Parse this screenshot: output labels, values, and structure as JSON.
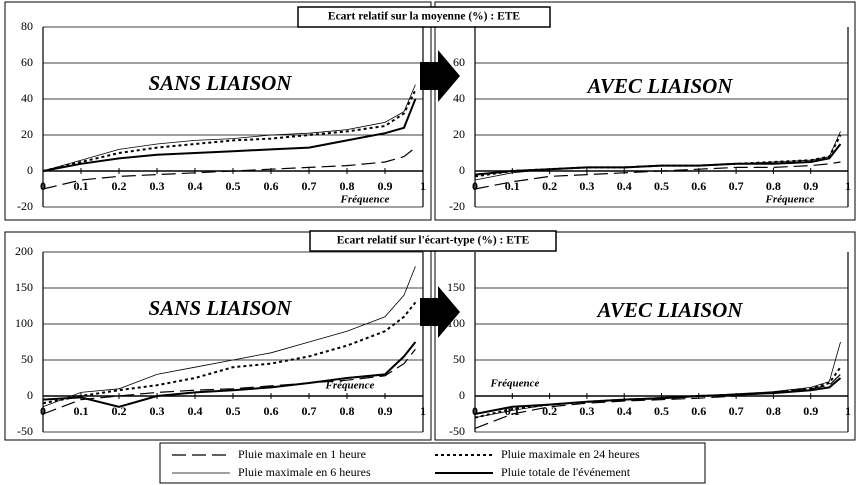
{
  "chart_data": [
    {
      "type": "line",
      "title": "Ecart relatif sur la moyenne (%) : ETE",
      "annotation": "SANS LIAISON",
      "xlabel": "Fréquence",
      "x": [
        0,
        0.1,
        0.2,
        0.3,
        0.4,
        0.5,
        0.6,
        0.7,
        0.8,
        0.9,
        0.95,
        0.98
      ],
      "xlim": [
        0,
        1
      ],
      "xticks": [
        0,
        0.1,
        0.2,
        0.3,
        0.4,
        0.5,
        0.6,
        0.7,
        0.8,
        0.9,
        1
      ],
      "ylim": [
        -20,
        80
      ],
      "yticks": [
        -20,
        0,
        20,
        40,
        60,
        80
      ],
      "grid": true,
      "series": [
        {
          "name": "Pluie maximale en 1 heure",
          "color": "#000",
          "style": "long-dash",
          "values": [
            -10,
            -5,
            -3,
            -2,
            -1,
            0,
            1,
            2,
            3,
            5,
            8,
            13
          ]
        },
        {
          "name": "Pluie maximale en 24 heures",
          "color": "#000",
          "style": "dotted",
          "values": [
            0,
            5,
            10,
            13,
            15,
            17,
            18,
            20,
            22,
            25,
            32,
            45
          ]
        },
        {
          "name": "Pluie maximale en 6 heures",
          "color": "#000",
          "style": "thin",
          "values": [
            0,
            6,
            12,
            15,
            17,
            18,
            20,
            21,
            23,
            27,
            33,
            48
          ]
        },
        {
          "name": "Pluie totale de l'événement",
          "color": "#000",
          "style": "thick",
          "values": [
            0,
            4,
            7,
            9,
            10,
            11,
            12,
            13,
            17,
            21,
            24,
            40
          ]
        }
      ]
    },
    {
      "type": "line",
      "annotation": "AVEC LIAISON",
      "xlabel": "Fréquence",
      "x": [
        0,
        0.1,
        0.2,
        0.3,
        0.4,
        0.5,
        0.6,
        0.7,
        0.8,
        0.9,
        0.95,
        0.98
      ],
      "xlim": [
        0,
        1
      ],
      "xticks": [
        0,
        0.1,
        0.2,
        0.3,
        0.4,
        0.5,
        0.6,
        0.7,
        0.8,
        0.9,
        1
      ],
      "ylim": [
        -20,
        80
      ],
      "yticks": [
        -20,
        0,
        20,
        40,
        60
      ],
      "grid": true,
      "series": [
        {
          "color": "#000",
          "style": "long-dash",
          "values": [
            -10,
            -6,
            -3,
            -2,
            -1,
            0,
            1,
            2,
            2,
            3,
            4,
            5
          ]
        },
        {
          "color": "#000",
          "style": "dotted",
          "values": [
            -3,
            0,
            1,
            2,
            2,
            3,
            3,
            4,
            5,
            6,
            8,
            20
          ]
        },
        {
          "color": "#000",
          "style": "thin",
          "values": [
            -5,
            -1,
            1,
            2,
            2,
            3,
            3,
            4,
            5,
            6,
            8,
            22
          ]
        },
        {
          "color": "#000",
          "style": "thick",
          "values": [
            -2,
            0,
            1,
            2,
            2,
            3,
            3,
            4,
            4,
            5,
            7,
            15
          ]
        }
      ]
    },
    {
      "type": "line",
      "title": "Ecart relatif sur l'écart-type (%) : ETE",
      "annotation": "SANS LIAISON",
      "xlabel": "Fréquence",
      "x": [
        0,
        0.1,
        0.2,
        0.3,
        0.4,
        0.5,
        0.6,
        0.7,
        0.8,
        0.9,
        0.95,
        0.98
      ],
      "xlim": [
        0,
        1
      ],
      "xticks": [
        0,
        0.1,
        0.2,
        0.3,
        0.4,
        0.5,
        0.6,
        0.7,
        0.8,
        0.9,
        1
      ],
      "ylim": [
        -50,
        200
      ],
      "yticks": [
        -50,
        0,
        50,
        100,
        150,
        200
      ],
      "grid": true,
      "series": [
        {
          "color": "#000",
          "style": "long-dash",
          "values": [
            -25,
            -5,
            0,
            5,
            8,
            10,
            14,
            18,
            22,
            28,
            45,
            65
          ]
        },
        {
          "color": "#000",
          "style": "dotted",
          "values": [
            -10,
            0,
            8,
            15,
            25,
            40,
            45,
            55,
            70,
            90,
            110,
            130
          ]
        },
        {
          "color": "#000",
          "style": "thin",
          "values": [
            -15,
            5,
            10,
            30,
            40,
            50,
            60,
            75,
            90,
            110,
            140,
            180
          ]
        },
        {
          "color": "#000",
          "style": "thick",
          "values": [
            -5,
            -2,
            -15,
            0,
            5,
            8,
            12,
            18,
            25,
            30,
            55,
            75
          ]
        }
      ]
    },
    {
      "type": "line",
      "annotation": "AVEC LIAISON",
      "xlabel": "Fréquence",
      "x": [
        0,
        0.1,
        0.2,
        0.3,
        0.4,
        0.5,
        0.6,
        0.7,
        0.8,
        0.9,
        0.95,
        0.98
      ],
      "xlim": [
        0,
        1
      ],
      "xticks": [
        0,
        0.1,
        0.2,
        0.3,
        0.4,
        0.5,
        0.6,
        0.7,
        0.8,
        0.9,
        1
      ],
      "ylim": [
        -50,
        200
      ],
      "yticks": [
        -50,
        0,
        50,
        100,
        150
      ],
      "grid": true,
      "series": [
        {
          "color": "#000",
          "style": "long-dash",
          "values": [
            -45,
            -25,
            -15,
            -10,
            -7,
            -5,
            -3,
            0,
            5,
            10,
            15,
            30
          ]
        },
        {
          "color": "#000",
          "style": "dotted",
          "values": [
            -30,
            -18,
            -12,
            -8,
            -5,
            -3,
            0,
            2,
            5,
            10,
            18,
            40
          ]
        },
        {
          "color": "#000",
          "style": "thin",
          "values": [
            -30,
            -20,
            -12,
            -8,
            -5,
            -2,
            0,
            3,
            6,
            12,
            20,
            75
          ]
        },
        {
          "color": "#000",
          "style": "thick",
          "values": [
            -25,
            -15,
            -12,
            -8,
            -5,
            -3,
            0,
            2,
            4,
            8,
            12,
            25
          ]
        }
      ]
    }
  ]
}
